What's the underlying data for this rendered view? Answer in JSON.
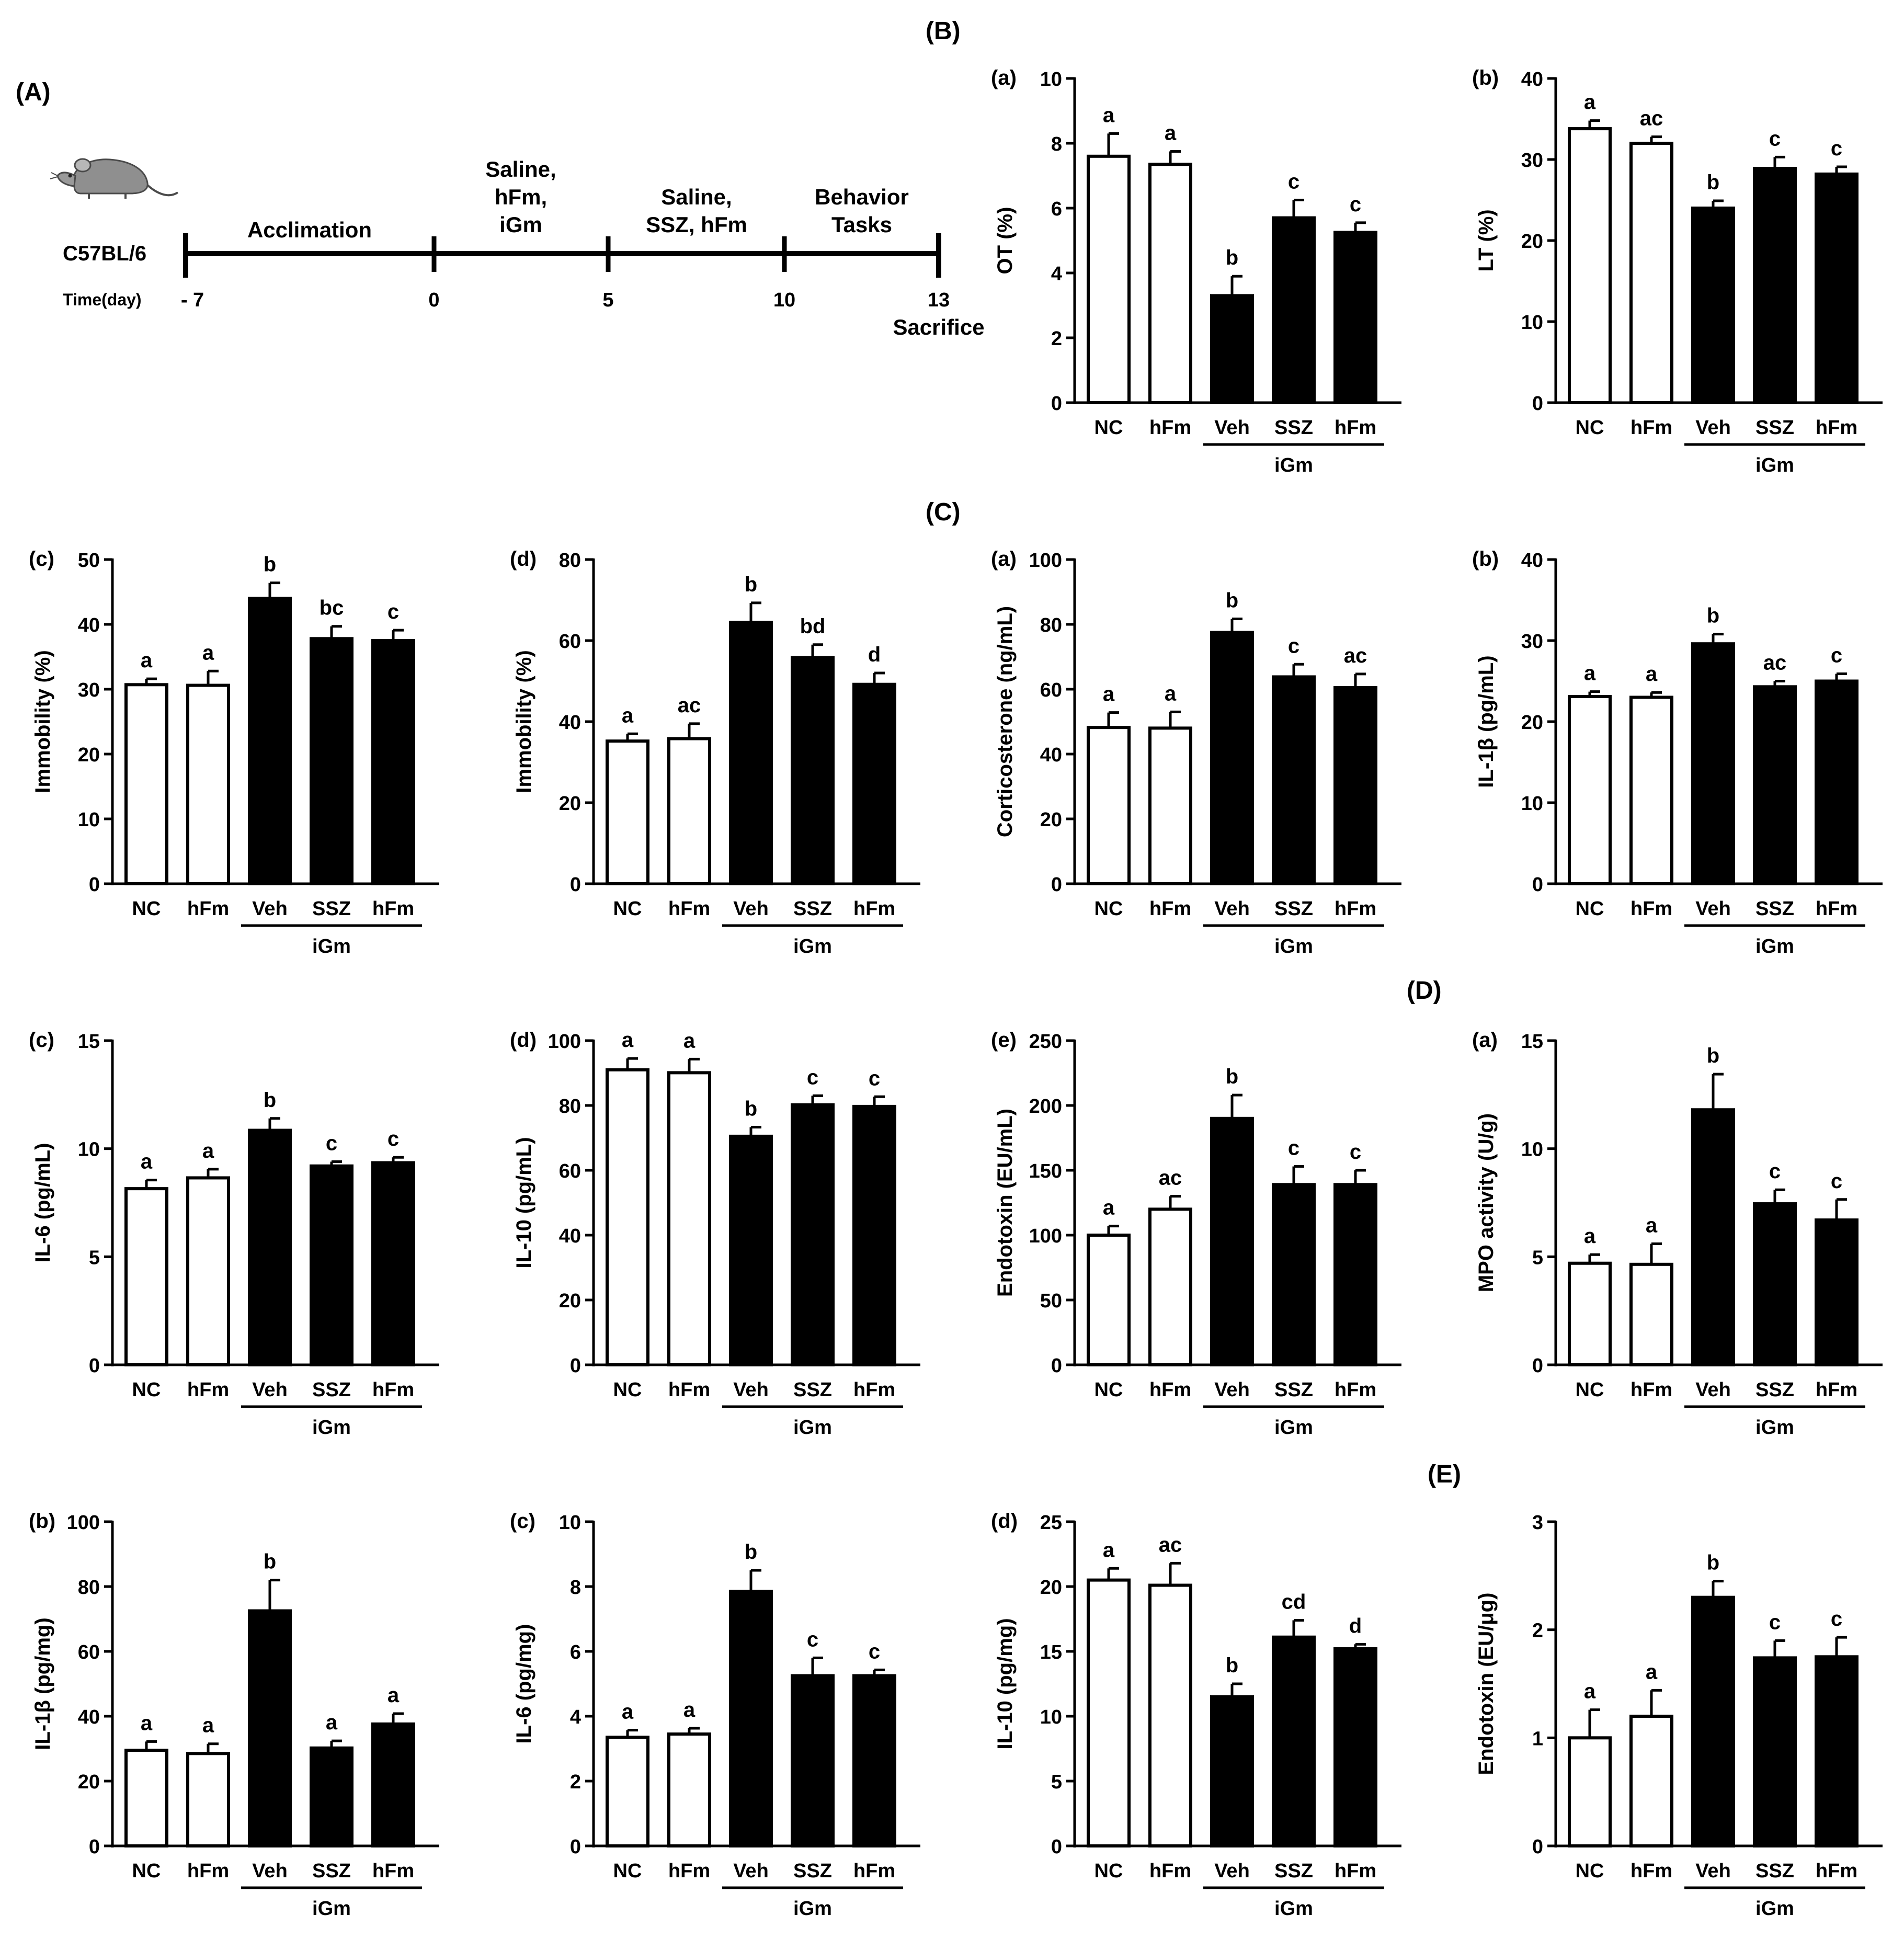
{
  "panel_letters": {
    "A": "(A)",
    "B": "(B)",
    "C": "(C)",
    "D": "(D)",
    "E": "(E)"
  },
  "timeline": {
    "strain": "C57BL/6",
    "time_label": "Time(day)",
    "ticks": [
      "- 7",
      "0",
      "5",
      "10",
      "13"
    ],
    "phases": [
      [
        "Acclimation"
      ],
      [
        "Saline,",
        "hFm,",
        "iGm"
      ],
      [
        "Saline,",
        "SSZ, hFm"
      ],
      [
        "Behavior",
        "Tasks"
      ]
    ],
    "end_label": "Sacrifice",
    "icon": "mouse-icon"
  },
  "categories": [
    "NC",
    "hFm",
    "Veh",
    "SSZ",
    "hFm"
  ],
  "group_label": "iGm",
  "colors": {
    "control": "#ffffff",
    "treated": "#000000",
    "line": "#000000"
  },
  "chart_data": [
    {
      "type": "bar",
      "sub": "(a)",
      "ylabel": "OT (%)",
      "ylim": [
        0,
        10
      ],
      "yticks": [
        0,
        2,
        4,
        6,
        8,
        10
      ],
      "values": [
        7.6,
        7.35,
        3.3,
        5.7,
        5.25
      ],
      "errors": [
        0.7,
        0.4,
        0.6,
        0.55,
        0.3
      ],
      "letters": [
        "a",
        "a",
        "b",
        "c",
        "c"
      ]
    },
    {
      "type": "bar",
      "sub": "(b)",
      "ylabel": "LT (%)",
      "ylim": [
        0,
        40
      ],
      "yticks": [
        0,
        10,
        20,
        30,
        40
      ],
      "values": [
        33.8,
        32,
        24,
        28.9,
        28.2
      ],
      "errors": [
        1.0,
        0.8,
        0.9,
        1.4,
        0.9
      ],
      "letters": [
        "a",
        "ac",
        "b",
        "c",
        "c"
      ]
    },
    {
      "type": "bar",
      "sub": "(c)",
      "ylabel": "Immobility (%)",
      "ylim": [
        0,
        50
      ],
      "yticks": [
        0,
        10,
        20,
        30,
        40,
        50
      ],
      "values": [
        30.7,
        30.6,
        44,
        37.8,
        37.5
      ],
      "errors": [
        0.9,
        2.2,
        2.4,
        1.9,
        1.6
      ],
      "letters": [
        "a",
        "a",
        "b",
        "bc",
        "c"
      ]
    },
    {
      "type": "bar",
      "sub": "(d)",
      "ylabel": "Immobility (%)",
      "ylim": [
        0,
        80
      ],
      "yticks": [
        0,
        20,
        40,
        60,
        80
      ],
      "values": [
        35.2,
        35.8,
        64.5,
        55.8,
        49.2
      ],
      "errors": [
        1.8,
        3.7,
        4.8,
        3.2,
        2.8
      ],
      "letters": [
        "a",
        "ac",
        "b",
        "bd",
        "d"
      ]
    },
    {
      "type": "bar",
      "sub": "(a)",
      "ylabel": "Corticosterone (ng/mL)",
      "ylim": [
        0,
        100
      ],
      "yticks": [
        0,
        20,
        40,
        60,
        80,
        100
      ],
      "values": [
        48.2,
        48,
        77.5,
        63.8,
        60.5
      ],
      "errors": [
        4.6,
        5.0,
        4.2,
        3.9,
        4.2
      ],
      "letters": [
        "a",
        "a",
        "b",
        "c",
        "ac"
      ]
    },
    {
      "type": "bar",
      "sub": "(b)",
      "ylabel": "IL-1β (pg/mL)",
      "ylim": [
        0,
        40
      ],
      "yticks": [
        0,
        10,
        20,
        30,
        40
      ],
      "values": [
        23.1,
        23.0,
        29.6,
        24.3,
        25.0
      ],
      "errors": [
        0.6,
        0.6,
        1.2,
        0.7,
        0.9
      ],
      "letters": [
        "a",
        "a",
        "b",
        "ac",
        "c"
      ]
    },
    {
      "type": "bar",
      "sub": "(c)",
      "ylabel": "IL-6 (pg/mL)",
      "ylim": [
        0,
        15
      ],
      "yticks": [
        0,
        5,
        10,
        15
      ],
      "values": [
        8.15,
        8.65,
        10.85,
        9.2,
        9.35
      ],
      "errors": [
        0.4,
        0.4,
        0.55,
        0.2,
        0.25
      ],
      "letters": [
        "a",
        "a",
        "b",
        "c",
        "c"
      ]
    },
    {
      "type": "bar",
      "sub": "(d)",
      "ylabel": "IL-10 (pg/mL)",
      "ylim": [
        0,
        100
      ],
      "yticks": [
        0,
        20,
        40,
        60,
        80,
        100
      ],
      "values": [
        91,
        90.1,
        70.5,
        80.2,
        79.7
      ],
      "errors": [
        3.5,
        4.2,
        2.8,
        2.8,
        3.0
      ],
      "letters": [
        "a",
        "a",
        "b",
        "c",
        "c"
      ]
    },
    {
      "type": "bar",
      "sub": "(e)",
      "ylabel": "Endotoxin (EU/mL)",
      "ylim": [
        0,
        250
      ],
      "yticks": [
        0,
        50,
        100,
        150,
        200,
        250
      ],
      "values": [
        100,
        120,
        190,
        139,
        139
      ],
      "errors": [
        7,
        10,
        18,
        14,
        11
      ],
      "letters": [
        "a",
        "ac",
        "b",
        "c",
        "c"
      ]
    },
    {
      "type": "bar",
      "sub": "(a)",
      "ylabel": "MPO activity (U/g)",
      "ylim": [
        0,
        15
      ],
      "yticks": [
        0,
        5,
        10,
        15
      ],
      "values": [
        4.7,
        4.65,
        11.8,
        7.45,
        6.7
      ],
      "errors": [
        0.4,
        0.95,
        1.65,
        0.65,
        0.95
      ],
      "letters": [
        "a",
        "a",
        "b",
        "c",
        "c"
      ]
    },
    {
      "type": "bar",
      "sub": "(b)",
      "ylabel": "IL-1β (pg/mg)",
      "ylim": [
        0,
        100
      ],
      "yticks": [
        0,
        20,
        40,
        60,
        80,
        100
      ],
      "values": [
        29.5,
        28.5,
        72.5,
        30.2,
        37.6
      ],
      "errors": [
        2.7,
        3.0,
        9.5,
        2.2,
        3.2
      ],
      "letters": [
        "a",
        "a",
        "b",
        "a",
        "a"
      ]
    },
    {
      "type": "bar",
      "sub": "(c)",
      "ylabel": "IL-6 (pg/mg)",
      "ylim": [
        0,
        10
      ],
      "yticks": [
        0,
        2,
        4,
        6,
        8,
        10
      ],
      "values": [
        3.35,
        3.45,
        7.85,
        5.25,
        5.25
      ],
      "errors": [
        0.22,
        0.18,
        0.65,
        0.55,
        0.18
      ],
      "letters": [
        "a",
        "a",
        "b",
        "c",
        "c"
      ]
    },
    {
      "type": "bar",
      "sub": "(d)",
      "ylabel": "IL-10 (pg/mg)",
      "ylim": [
        0,
        25
      ],
      "yticks": [
        0,
        5,
        10,
        15,
        20,
        25
      ],
      "values": [
        20.5,
        20.1,
        11.5,
        16.1,
        15.2
      ],
      "errors": [
        0.9,
        1.7,
        1.0,
        1.3,
        0.35
      ],
      "letters": [
        "a",
        "ac",
        "b",
        "cd",
        "d"
      ]
    },
    {
      "type": "bar",
      "sub": "",
      "ylabel": "Endotoxin (EU/μg)",
      "ylim": [
        0,
        3
      ],
      "yticks": [
        0,
        1,
        2,
        3
      ],
      "values": [
        1.0,
        1.2,
        2.3,
        1.74,
        1.75
      ],
      "errors": [
        0.26,
        0.24,
        0.15,
        0.16,
        0.18
      ],
      "letters": [
        "a",
        "a",
        "b",
        "c",
        "c"
      ]
    }
  ]
}
